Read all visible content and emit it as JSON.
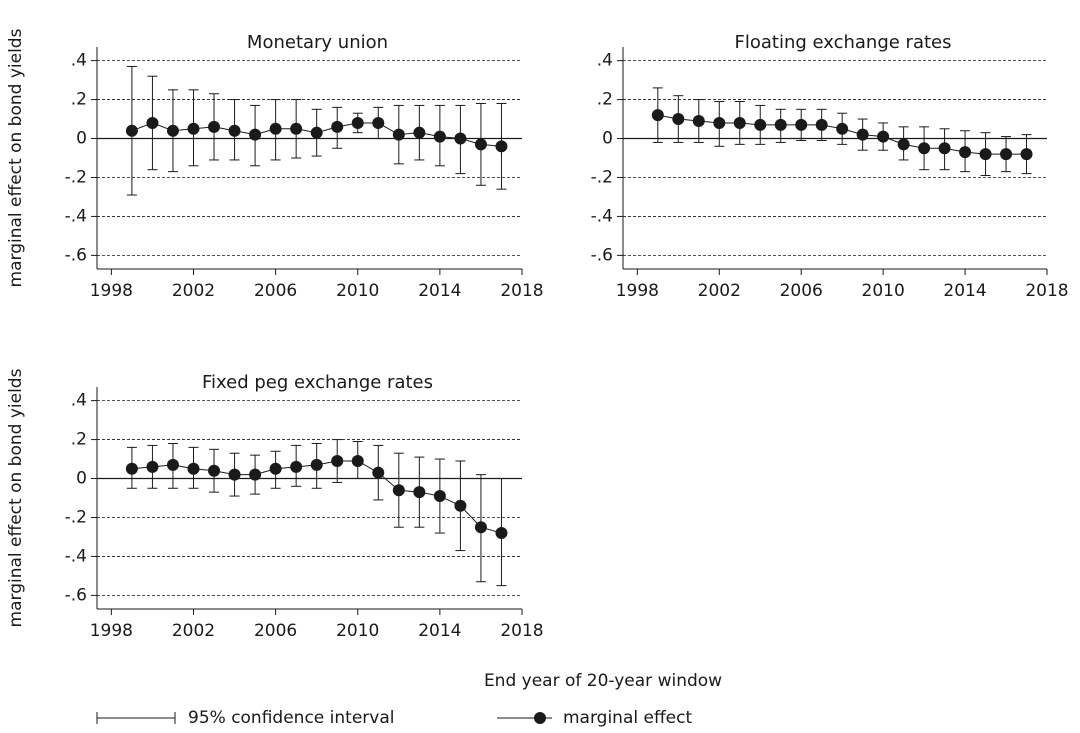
{
  "chart_data": [
    {
      "type": "errorbar",
      "title": "Monetary union",
      "ylabel": "marginal effect on bond yields",
      "color": "#1a1a1a",
      "grid": true,
      "x": [
        1999,
        2000,
        2001,
        2002,
        2003,
        2004,
        2005,
        2006,
        2007,
        2008,
        2009,
        2010,
        2011,
        2012,
        2013,
        2014,
        2015,
        2016,
        2017
      ],
      "values": [
        0.04,
        0.08,
        0.04,
        0.05,
        0.06,
        0.04,
        0.02,
        0.05,
        0.05,
        0.03,
        0.06,
        0.08,
        0.08,
        0.02,
        0.03,
        0.01,
        0.0,
        -0.03,
        -0.04
      ],
      "ci_lower": [
        -0.29,
        -0.16,
        -0.17,
        -0.14,
        -0.11,
        -0.11,
        -0.14,
        -0.11,
        -0.1,
        -0.09,
        -0.05,
        0.03,
        0.0,
        -0.13,
        -0.11,
        -0.14,
        -0.18,
        -0.24,
        -0.26
      ],
      "ci_upper": [
        0.37,
        0.32,
        0.25,
        0.25,
        0.23,
        0.2,
        0.17,
        0.2,
        0.2,
        0.15,
        0.16,
        0.13,
        0.16,
        0.17,
        0.17,
        0.17,
        0.17,
        0.18,
        0.18
      ],
      "xlim": [
        1997.3,
        2018
      ],
      "xticks": [
        1998,
        2002,
        2006,
        2010,
        2014,
        2018
      ],
      "ylim": [
        -0.67,
        0.47
      ],
      "yticks": [
        {
          "value": 0.4,
          "label": ".4"
        },
        {
          "value": 0.2,
          "label": ".2"
        },
        0,
        {
          "value": -0.2,
          "label": "-.2"
        },
        {
          "value": -0.4,
          "label": "-.4"
        },
        {
          "value": -0.6,
          "label": "-.6"
        }
      ]
    },
    {
      "type": "errorbar",
      "title": "Floating exchange rates",
      "color": "#1a1a1a",
      "grid": true,
      "x": [
        1999,
        2000,
        2001,
        2002,
        2003,
        2004,
        2005,
        2006,
        2007,
        2008,
        2009,
        2010,
        2011,
        2012,
        2013,
        2014,
        2015,
        2016,
        2017
      ],
      "values": [
        0.12,
        0.1,
        0.09,
        0.08,
        0.08,
        0.07,
        0.07,
        0.07,
        0.07,
        0.05,
        0.02,
        0.01,
        -0.03,
        -0.05,
        -0.05,
        -0.07,
        -0.08,
        -0.08,
        -0.08
      ],
      "ci_lower": [
        -0.02,
        -0.02,
        -0.02,
        -0.04,
        -0.03,
        -0.03,
        -0.02,
        -0.01,
        -0.01,
        -0.03,
        -0.06,
        -0.06,
        -0.11,
        -0.16,
        -0.16,
        -0.17,
        -0.19,
        -0.17,
        -0.18
      ],
      "ci_upper": [
        0.26,
        0.22,
        0.2,
        0.19,
        0.19,
        0.17,
        0.15,
        0.15,
        0.15,
        0.13,
        0.1,
        0.08,
        0.06,
        0.06,
        0.05,
        0.04,
        0.03,
        0.01,
        0.02
      ],
      "xlim": [
        1997.3,
        2018
      ],
      "xticks": [
        1998,
        2002,
        2006,
        2010,
        2014,
        2018
      ],
      "ylim": [
        -0.67,
        0.47
      ],
      "yticks": [
        {
          "value": 0.4,
          "label": ".4"
        },
        {
          "value": 0.2,
          "label": ".2"
        },
        0,
        {
          "value": -0.2,
          "label": "-.2"
        },
        {
          "value": -0.4,
          "label": "-.4"
        },
        {
          "value": -0.6,
          "label": "-.6"
        }
      ]
    },
    {
      "type": "errorbar",
      "title": "Fixed peg exchange rates",
      "ylabel": "marginal effect on bond yields",
      "color": "#1a1a1a",
      "grid": true,
      "x": [
        1999,
        2000,
        2001,
        2002,
        2003,
        2004,
        2005,
        2006,
        2007,
        2008,
        2009,
        2010,
        2011,
        2012,
        2013,
        2014,
        2015,
        2016,
        2017
      ],
      "values": [
        0.05,
        0.06,
        0.07,
        0.05,
        0.04,
        0.02,
        0.02,
        0.05,
        0.06,
        0.07,
        0.09,
        0.09,
        0.03,
        -0.06,
        -0.07,
        -0.09,
        -0.14,
        -0.25,
        -0.28
      ],
      "ci_lower": [
        -0.05,
        -0.05,
        -0.05,
        -0.05,
        -0.07,
        -0.09,
        -0.08,
        -0.05,
        -0.04,
        -0.05,
        -0.02,
        0.0,
        -0.11,
        -0.25,
        -0.25,
        -0.28,
        -0.37,
        -0.53,
        -0.55
      ],
      "ci_upper": [
        0.16,
        0.17,
        0.18,
        0.16,
        0.15,
        0.13,
        0.12,
        0.14,
        0.17,
        0.18,
        0.2,
        0.19,
        0.17,
        0.13,
        0.11,
        0.1,
        0.09,
        0.02,
        0.0
      ],
      "xlim": [
        1997.3,
        2018
      ],
      "xticks": [
        1998,
        2002,
        2006,
        2010,
        2014,
        2018
      ],
      "ylim": [
        -0.67,
        0.47
      ],
      "yticks": [
        {
          "value": 0.4,
          "label": ".4"
        },
        {
          "value": 0.2,
          "label": ".2"
        },
        0,
        {
          "value": -0.2,
          "label": "-.2"
        },
        {
          "value": -0.4,
          "label": "-.4"
        },
        {
          "value": -0.6,
          "label": "-.6"
        }
      ]
    }
  ],
  "figure": {
    "xlabel": "End year of 20-year window",
    "legend": [
      "95% confidence interval",
      "marginal effect"
    ]
  }
}
